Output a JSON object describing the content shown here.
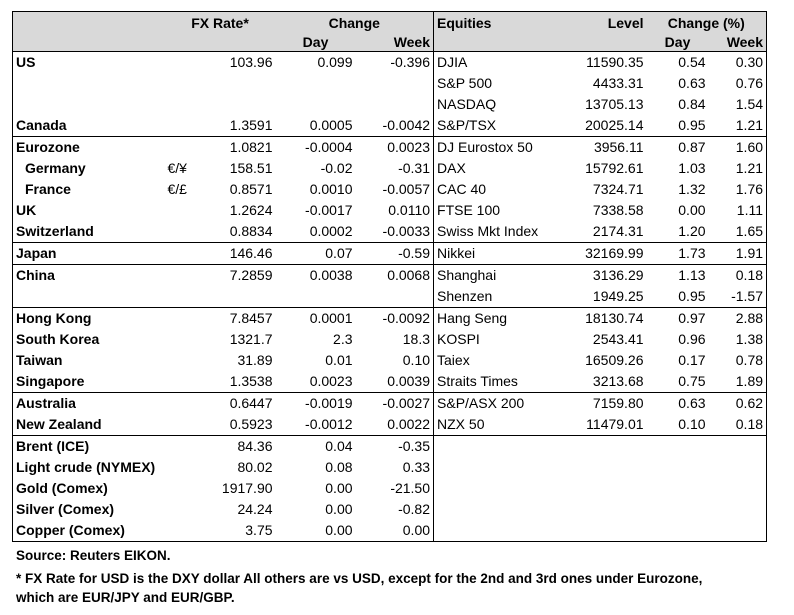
{
  "header": {
    "fx_rate": "FX Rate*",
    "change": "Change",
    "equities": "Equities",
    "level": "Level",
    "change_pct": "Change (%)",
    "day": "Day",
    "week": "Week"
  },
  "rows": [
    {
      "country": "US",
      "sym": "",
      "fx": "103.96",
      "fx_day": "0.099",
      "fx_week": "-0.396",
      "eq": "DJIA",
      "level": "11590.35",
      "eq_day": "0.54",
      "eq_week": "0.30",
      "sep": true
    },
    {
      "country": "",
      "sym": "",
      "fx": "",
      "fx_day": "",
      "fx_week": "",
      "eq": "S&P 500",
      "level": "4433.31",
      "eq_day": "0.63",
      "eq_week": "0.76"
    },
    {
      "country": "",
      "sym": "",
      "fx": "",
      "fx_day": "",
      "fx_week": "",
      "eq": "NASDAQ",
      "level": "13705.13",
      "eq_day": "0.84",
      "eq_week": "1.54"
    },
    {
      "country": "Canada",
      "sym": "",
      "fx": "1.3591",
      "fx_day": "0.0005",
      "fx_week": "-0.0042",
      "eq": "S&P/TSX",
      "level": "20025.14",
      "eq_day": "0.95",
      "eq_week": "1.21"
    },
    {
      "country": "Eurozone",
      "sym": "",
      "fx": "1.0821",
      "fx_day": "-0.0004",
      "fx_week": "0.0023",
      "eq": "DJ Eurostox 50",
      "level": "3956.11",
      "eq_day": "0.87",
      "eq_week": "1.60",
      "sep": true
    },
    {
      "country": "Germany",
      "sym": "€/¥",
      "fx": "158.51",
      "fx_day": "-0.02",
      "fx_week": "-0.31",
      "eq": "DAX",
      "level": "15792.61",
      "eq_day": "1.03",
      "eq_week": "1.21",
      "indent": true
    },
    {
      "country": "France",
      "sym": "€/£",
      "fx": "0.8571",
      "fx_day": "0.0010",
      "fx_week": "-0.0057",
      "eq": "CAC 40",
      "level": "7324.71",
      "eq_day": "1.32",
      "eq_week": "1.76",
      "indent": true
    },
    {
      "country": "UK",
      "sym": "",
      "fx": "1.2624",
      "fx_day": "-0.0017",
      "fx_week": "0.0110",
      "eq": "FTSE 100",
      "level": "7338.58",
      "eq_day": "0.00",
      "eq_week": "1.11"
    },
    {
      "country": "Switzerland",
      "sym": "",
      "fx": "0.8834",
      "fx_day": "0.0002",
      "fx_week": "-0.0033",
      "eq": "Swiss Mkt Index",
      "level": "2174.31",
      "eq_day": "1.20",
      "eq_week": "1.65"
    },
    {
      "country": "Japan",
      "sym": "",
      "fx": "146.46",
      "fx_day": "0.07",
      "fx_week": "-0.59",
      "eq": "Nikkei",
      "level": "32169.99",
      "eq_day": "1.73",
      "eq_week": "1.91",
      "sep": true
    },
    {
      "country": "China",
      "sym": "",
      "fx": "7.2859",
      "fx_day": "0.0038",
      "fx_week": "0.0068",
      "eq": "Shanghai",
      "level": "3136.29",
      "eq_day": "1.13",
      "eq_week": "0.18",
      "sep": true
    },
    {
      "country": "",
      "sym": "",
      "fx": "",
      "fx_day": "",
      "fx_week": "",
      "eq": "Shenzen",
      "level": "1949.25",
      "eq_day": "0.95",
      "eq_week": "-1.57"
    },
    {
      "country": "Hong Kong",
      "sym": "",
      "fx": "7.8457",
      "fx_day": "0.0001",
      "fx_week": "-0.0092",
      "eq": "Hang Seng",
      "level": "18130.74",
      "eq_day": "0.97",
      "eq_week": "2.88",
      "sep": true
    },
    {
      "country": "South Korea",
      "sym": "",
      "fx": "1321.7",
      "fx_day": "2.3",
      "fx_week": "18.3",
      "eq": "KOSPI",
      "level": "2543.41",
      "eq_day": "0.96",
      "eq_week": "1.38"
    },
    {
      "country": "Taiwan",
      "sym": "",
      "fx": "31.89",
      "fx_day": "0.01",
      "fx_week": "0.10",
      "eq": "Taiex",
      "level": "16509.26",
      "eq_day": "0.17",
      "eq_week": "0.78"
    },
    {
      "country": "Singapore",
      "sym": "",
      "fx": "1.3538",
      "fx_day": "0.0023",
      "fx_week": "0.0039",
      "eq": "Straits Times",
      "level": "3213.68",
      "eq_day": "0.75",
      "eq_week": "1.89"
    },
    {
      "country": "Australia",
      "sym": "",
      "fx": "0.6447",
      "fx_day": "-0.0019",
      "fx_week": "-0.0027",
      "eq": "S&P/ASX  200",
      "level": "7159.80",
      "eq_day": "0.63",
      "eq_week": "0.62",
      "sep": true
    },
    {
      "country": "New Zealand",
      "sym": "",
      "fx": "0.5923",
      "fx_day": "-0.0012",
      "fx_week": "0.0022",
      "eq": "NZX 50",
      "level": "11479.01",
      "eq_day": "0.10",
      "eq_week": "0.18"
    },
    {
      "country": "Brent (ICE)",
      "sym": "",
      "fx": "84.36",
      "fx_day": "0.04",
      "fx_week": "-0.35",
      "eq": "",
      "level": "",
      "eq_day": "",
      "eq_week": "",
      "sep": true
    },
    {
      "country": "Light crude (NYMEX)",
      "sym": "",
      "fx": "80.02",
      "fx_day": "0.08",
      "fx_week": "0.33",
      "eq": "",
      "level": "",
      "eq_day": "",
      "eq_week": ""
    },
    {
      "country": "Gold (Comex)",
      "sym": "",
      "fx": "1917.90",
      "fx_day": "0.00",
      "fx_week": "-21.50",
      "eq": "",
      "level": "",
      "eq_day": "",
      "eq_week": ""
    },
    {
      "country": "Silver (Comex)",
      "sym": "",
      "fx": "24.24",
      "fx_day": "0.00",
      "fx_week": "-0.82",
      "eq": "",
      "level": "",
      "eq_day": "",
      "eq_week": ""
    },
    {
      "country": "Copper (Comex)",
      "sym": "",
      "fx": "3.75",
      "fx_day": "0.00",
      "fx_week": "0.00",
      "eq": "",
      "level": "",
      "eq_day": "",
      "eq_week": ""
    }
  ],
  "notes": {
    "source": "Source:  Reuters EIKON.",
    "footnote1": "* FX Rate for USD is the DXY dollar  All others are vs USD, except for the 2nd and 3rd ones under Eurozone,",
    "footnote2": "  which are EUR/JPY and EUR/GBP."
  }
}
